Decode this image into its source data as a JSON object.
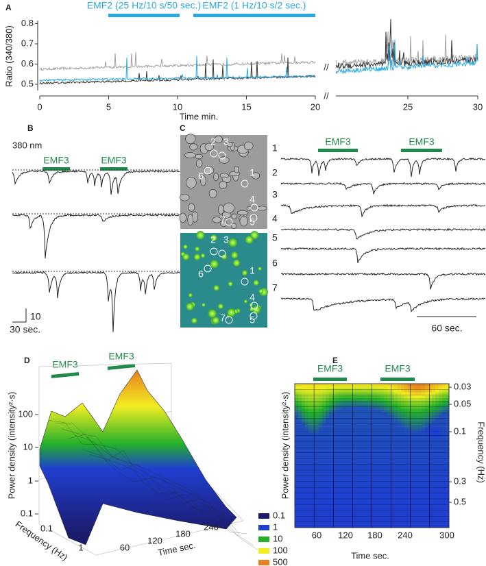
{
  "panel_a": {
    "label": "A",
    "stimuli": [
      "EMF2 (25 Hz/10 s/50 sec.)",
      "EMF2 (1 Hz/10 s/2 sec.)"
    ],
    "y_label": "Ratio (340/380)",
    "x_label": "Time min.",
    "yticks": [
      "0.8",
      "0.7",
      "0.6",
      "0.5"
    ],
    "xticks": [
      "0",
      "5",
      "10",
      "15",
      "20",
      "25",
      "30"
    ],
    "break_mark": "//"
  },
  "panel_b": {
    "label": "B",
    "wavelength": "380 nm",
    "stimulus": "EMF3",
    "scale_y": "10",
    "scale_x": "30 sec."
  },
  "panel_c": {
    "label": "C",
    "stimulus": "EMF3",
    "cells": [
      "1",
      "2",
      "3",
      "4",
      "5",
      "6",
      "7"
    ],
    "scale_x": "60 sec."
  },
  "panel_d": {
    "label": "D",
    "stimulus": "EMF3",
    "y_label": "Power density (intensity²·s)",
    "yticks": [
      "100",
      "10",
      "1",
      "0.1"
    ],
    "frequency_label": "Frequency (Hz)",
    "frequency_ticks": [
      "0.1",
      "1"
    ],
    "time_label": "Time sec.",
    "time_ticks": [
      "60",
      "120",
      "180",
      "240"
    ],
    "legend": [
      {
        "label": "0.1",
        "color": "#1c1a6b"
      },
      {
        "label": "1",
        "color": "#1f3fd0"
      },
      {
        "label": "10",
        "color": "#22b02a"
      },
      {
        "label": "100",
        "color": "#f2ee22"
      },
      {
        "label": "500",
        "color": "#e8801e"
      }
    ]
  },
  "panel_e": {
    "label": "E",
    "stimulus": "EMF3",
    "y_label": "Power density (intensity²·s)",
    "frequency_label": "Frequency (Hz)",
    "frequency_ticks": [
      "0.03",
      "0.05",
      "0.1",
      "0.3",
      "0.5"
    ],
    "time_label": "Time sec.",
    "time_ticks": [
      "60",
      "120",
      "180",
      "240",
      "300"
    ]
  }
}
